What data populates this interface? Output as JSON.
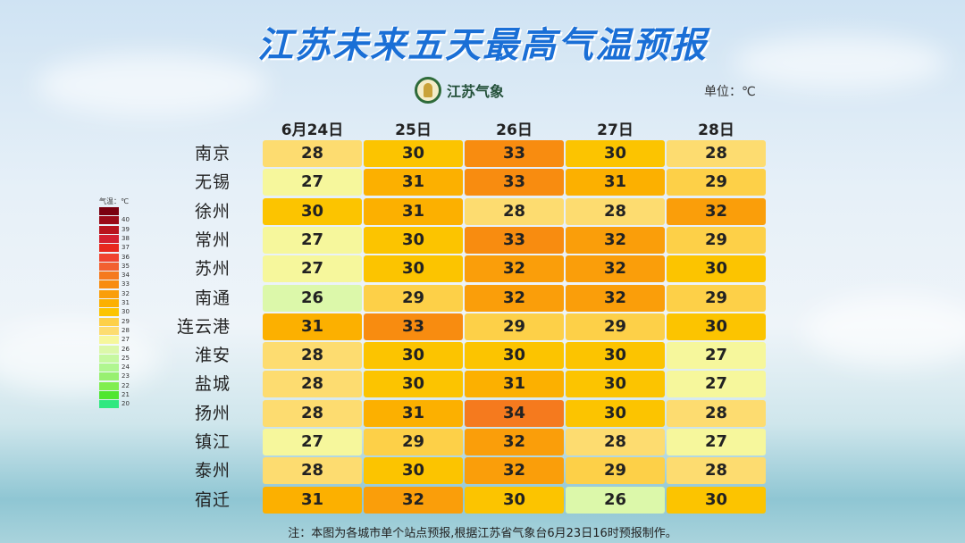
{
  "title": "江苏未来五天最高气温预报",
  "logo_text": "江苏气象",
  "unit": "单位：℃",
  "note": "注：本图为各城市单个站点预报,根据江苏省气象台6月23日16时预报制作。",
  "chart_data": {
    "type": "heatmap",
    "title": "江苏未来五天最高气温预报",
    "columns": [
      "6月24日",
      "25日",
      "26日",
      "27日",
      "28日"
    ],
    "rows": [
      "南京",
      "无锡",
      "徐州",
      "常州",
      "苏州",
      "南通",
      "连云港",
      "淮安",
      "盐城",
      "扬州",
      "镇江",
      "泰州",
      "宿迁"
    ],
    "values": [
      [
        28,
        30,
        33,
        30,
        28
      ],
      [
        27,
        31,
        33,
        31,
        29
      ],
      [
        30,
        31,
        28,
        28,
        32
      ],
      [
        27,
        30,
        33,
        32,
        29
      ],
      [
        27,
        30,
        32,
        32,
        30
      ],
      [
        26,
        29,
        32,
        32,
        29
      ],
      [
        31,
        33,
        29,
        29,
        30
      ],
      [
        28,
        30,
        30,
        30,
        27
      ],
      [
        28,
        30,
        31,
        30,
        27
      ],
      [
        28,
        31,
        34,
        30,
        28
      ],
      [
        27,
        29,
        32,
        28,
        27
      ],
      [
        28,
        30,
        32,
        29,
        28
      ],
      [
        31,
        32,
        30,
        26,
        30
      ]
    ],
    "legend": {
      "title": "气温：℃",
      "labels": [
        40,
        39,
        38,
        37,
        36,
        35,
        34,
        33,
        32,
        31,
        30,
        29,
        28,
        27,
        26,
        25,
        24,
        23,
        22,
        21,
        20
      ],
      "colors": {
        "41": "#7a0010",
        "40": "#9a0a18",
        "39": "#b8141e",
        "38": "#d42030",
        "37": "#e8281e",
        "36": "#f04430",
        "35": "#f26030",
        "34": "#f57a1e",
        "33": "#f88c10",
        "32": "#fa9e0a",
        "31": "#fcb000",
        "30": "#fcc400",
        "29": "#fdd048",
        "28": "#fddc70",
        "27": "#f6f79c",
        "26": "#dcf8aa",
        "25": "#c6f8a0",
        "24": "#b0f690",
        "23": "#98f070",
        "22": "#80ee50",
        "21": "#50e630",
        "20": "#30e880"
      }
    }
  }
}
